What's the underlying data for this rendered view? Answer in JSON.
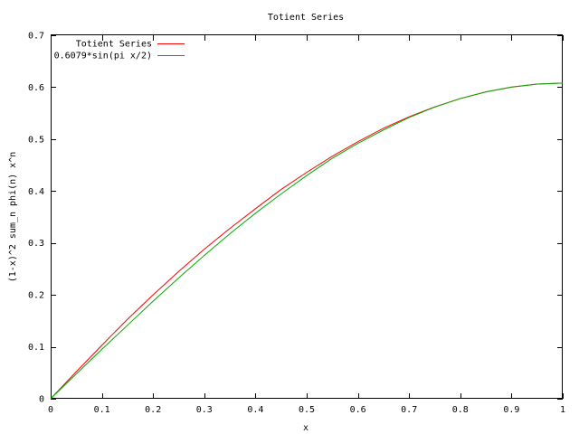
{
  "chart_data": {
    "type": "line",
    "title": "Totient Series",
    "xlabel": "x",
    "ylabel": "(1-x)^2 sum_n phi(n) x^n",
    "xlim": [
      0,
      1
    ],
    "ylim": [
      0,
      0.7
    ],
    "xticks": [
      "0",
      "0.1",
      "0.2",
      "0.3",
      "0.4",
      "0.5",
      "0.6",
      "0.7",
      "0.8",
      "0.9",
      "1"
    ],
    "yticks": [
      "0",
      "0.1",
      "0.2",
      "0.3",
      "0.4",
      "0.5",
      "0.6",
      "0.7"
    ],
    "grid": false,
    "legend_position": "top-left",
    "series": [
      {
        "name": "Totient Series",
        "color": "#ff0000",
        "x": [
          0,
          0.05,
          0.1,
          0.15,
          0.2,
          0.25,
          0.3,
          0.35,
          0.4,
          0.45,
          0.5,
          0.55,
          0.6,
          0.65,
          0.7,
          0.75,
          0.8,
          0.85,
          0.9,
          0.95,
          1.0
        ],
        "y": [
          0,
          0.052,
          0.103,
          0.153,
          0.2,
          0.245,
          0.288,
          0.328,
          0.366,
          0.403,
          0.436,
          0.467,
          0.495,
          0.521,
          0.543,
          0.562,
          0.578,
          0.591,
          0.6,
          0.606,
          0.608
        ]
      },
      {
        "name": "0.6079*sin(pi x/2)",
        "color": "#00aa00",
        "x": [
          0,
          0.05,
          0.1,
          0.15,
          0.2,
          0.25,
          0.3,
          0.35,
          0.4,
          0.45,
          0.5,
          0.55,
          0.6,
          0.65,
          0.7,
          0.75,
          0.8,
          0.85,
          0.9,
          0.95,
          1.0
        ],
        "y": [
          0,
          0.0477,
          0.0951,
          0.1416,
          0.1879,
          0.2326,
          0.276,
          0.3178,
          0.3573,
          0.3944,
          0.4298,
          0.4631,
          0.4918,
          0.5176,
          0.5416,
          0.5617,
          0.5782,
          0.591,
          0.6004,
          0.606,
          0.6079
        ]
      }
    ]
  }
}
